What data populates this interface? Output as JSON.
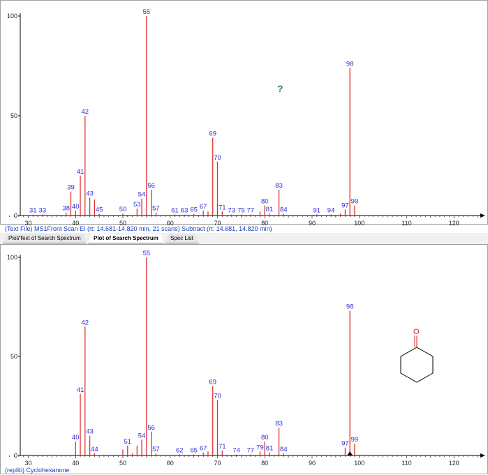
{
  "tabs": [
    {
      "label": "Plot/Text of Search Spectrum",
      "active": false
    },
    {
      "label": "Plot of Search Spectrum",
      "active": true
    },
    {
      "label": "Spec List",
      "active": false
    }
  ],
  "top_caption": "(Text File) MS1Front Scan EI (rt: 14.681-14.820 min, 21 scans) Subtract (rt: 14.681, 14.820 min)",
  "bottom_caption": "(replib) Cyclohexanone",
  "help_glyph": "?",
  "structure": {
    "atom_label": "O",
    "atom_color": "#e02020",
    "bond_color": "#000000"
  },
  "colors": {
    "peak": "#e03030",
    "label": "#2b2bd6",
    "axis": "#000000"
  },
  "chart_data": [
    {
      "type": "bar",
      "xlabel": "",
      "ylabel": "",
      "xlim": [
        25.5,
        127
      ],
      "ylim": [
        0,
        100
      ],
      "xticks": [
        30,
        40,
        50,
        60,
        70,
        80,
        90,
        100,
        110,
        120
      ],
      "yticks": [
        0,
        50,
        100
      ],
      "peaks": [
        {
          "x": 31,
          "y": 0.5,
          "label": "31"
        },
        {
          "x": 33,
          "y": 0.5,
          "label": "33"
        },
        {
          "x": 38,
          "y": 1.5,
          "label": "38"
        },
        {
          "x": 39,
          "y": 12,
          "label": "39"
        },
        {
          "x": 40,
          "y": 2.5,
          "label": "40"
        },
        {
          "x": 41,
          "y": 20,
          "label": "41"
        },
        {
          "x": 42,
          "y": 50,
          "label": "42"
        },
        {
          "x": 43,
          "y": 9,
          "label": "43"
        },
        {
          "x": 44,
          "y": 8,
          "label": ""
        },
        {
          "x": 45,
          "y": 0.8,
          "label": "45"
        },
        {
          "x": 50,
          "y": 1,
          "label": "50"
        },
        {
          "x": 53,
          "y": 3.5,
          "label": "53"
        },
        {
          "x": 54,
          "y": 8.5,
          "label": "54"
        },
        {
          "x": 55,
          "y": 100,
          "label": "55"
        },
        {
          "x": 56,
          "y": 13,
          "label": "56"
        },
        {
          "x": 57,
          "y": 1.5,
          "label": "57"
        },
        {
          "x": 61,
          "y": 0.5,
          "label": "61"
        },
        {
          "x": 63,
          "y": 0.5,
          "label": "63"
        },
        {
          "x": 65,
          "y": 0.8,
          "label": "65"
        },
        {
          "x": 67,
          "y": 2.5,
          "label": "67"
        },
        {
          "x": 68,
          "y": 2,
          "label": ""
        },
        {
          "x": 69,
          "y": 39,
          "label": "69"
        },
        {
          "x": 70,
          "y": 27,
          "label": "70"
        },
        {
          "x": 71,
          "y": 2,
          "label": "71"
        },
        {
          "x": 73,
          "y": 0.5,
          "label": "73"
        },
        {
          "x": 75,
          "y": 0.5,
          "label": "75"
        },
        {
          "x": 77,
          "y": 0.5,
          "label": "77"
        },
        {
          "x": 79,
          "y": 2,
          "label": ""
        },
        {
          "x": 80,
          "y": 5,
          "label": "80"
        },
        {
          "x": 81,
          "y": 1,
          "label": "81"
        },
        {
          "x": 83,
          "y": 13,
          "label": "83"
        },
        {
          "x": 84,
          "y": 0.8,
          "label": "84"
        },
        {
          "x": 91,
          "y": 0.5,
          "label": "91"
        },
        {
          "x": 94,
          "y": 0.5,
          "label": "94"
        },
        {
          "x": 96,
          "y": 1,
          "label": ""
        },
        {
          "x": 97,
          "y": 3,
          "label": "97"
        },
        {
          "x": 98,
          "y": 74,
          "label": "98"
        },
        {
          "x": 99,
          "y": 5,
          "label": "99"
        }
      ]
    },
    {
      "type": "bar",
      "xlabel": "",
      "ylabel": "",
      "xlim": [
        25.5,
        127
      ],
      "ylim": [
        0,
        100
      ],
      "xticks": [
        30,
        40,
        50,
        60,
        70,
        80,
        90,
        100,
        110,
        120
      ],
      "yticks": [
        0,
        50,
        100
      ],
      "peaks": [
        {
          "x": 40,
          "y": 7,
          "label": "40"
        },
        {
          "x": 41,
          "y": 31,
          "label": "41"
        },
        {
          "x": 42,
          "y": 65,
          "label": "42"
        },
        {
          "x": 43,
          "y": 10,
          "label": "43"
        },
        {
          "x": 44,
          "y": 1,
          "label": "44"
        },
        {
          "x": 50,
          "y": 3,
          "label": ""
        },
        {
          "x": 51,
          "y": 5,
          "label": "51"
        },
        {
          "x": 52,
          "y": 1,
          "label": ""
        },
        {
          "x": 53,
          "y": 5,
          "label": ""
        },
        {
          "x": 54,
          "y": 8,
          "label": "54"
        },
        {
          "x": 55,
          "y": 100,
          "label": "55"
        },
        {
          "x": 56,
          "y": 12,
          "label": "56"
        },
        {
          "x": 57,
          "y": 1,
          "label": "57"
        },
        {
          "x": 62,
          "y": 0.5,
          "label": "62"
        },
        {
          "x": 65,
          "y": 0.5,
          "label": "65"
        },
        {
          "x": 67,
          "y": 1.5,
          "label": "67"
        },
        {
          "x": 68,
          "y": 2,
          "label": ""
        },
        {
          "x": 69,
          "y": 35,
          "label": "69"
        },
        {
          "x": 70,
          "y": 28,
          "label": "70"
        },
        {
          "x": 71,
          "y": 2.5,
          "label": "71"
        },
        {
          "x": 74,
          "y": 0.5,
          "label": "74"
        },
        {
          "x": 77,
          "y": 0.5,
          "label": "77"
        },
        {
          "x": 79,
          "y": 2,
          "label": "79"
        },
        {
          "x": 80,
          "y": 7,
          "label": "80"
        },
        {
          "x": 81,
          "y": 1.5,
          "label": "81"
        },
        {
          "x": 83,
          "y": 14,
          "label": "83"
        },
        {
          "x": 84,
          "y": 1,
          "label": "84"
        },
        {
          "x": 97,
          "y": 4,
          "label": "97"
        },
        {
          "x": 98,
          "y": 73,
          "label": "98"
        },
        {
          "x": 99,
          "y": 6,
          "label": "99"
        }
      ]
    }
  ]
}
